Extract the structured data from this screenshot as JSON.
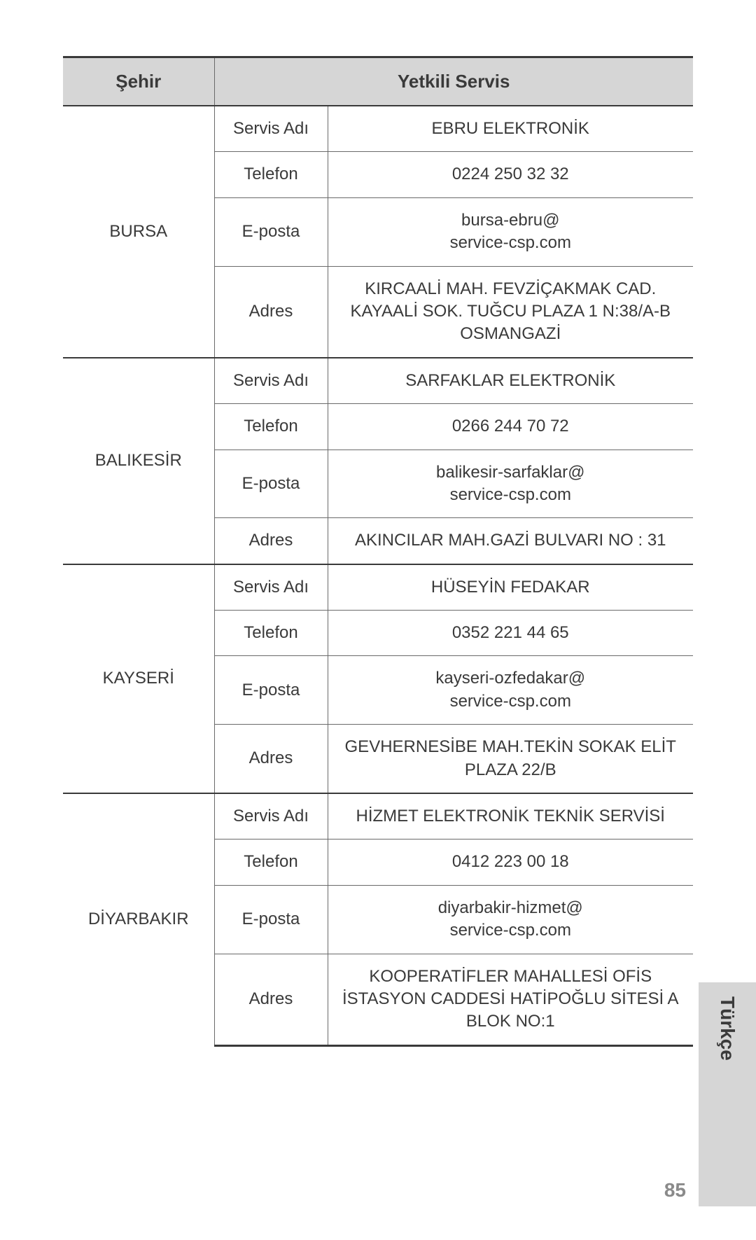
{
  "headers": {
    "city": "Şehir",
    "service": "Yetkili Servis"
  },
  "labels": {
    "name": "Servis Adı",
    "phone": "Telefon",
    "email": "E-posta",
    "address": "Adres"
  },
  "cities": [
    {
      "city": "BURSA",
      "name": "EBRU ELEKTRONİK",
      "phone": "0224 250 32 32",
      "email": "bursa-ebru@\nservice-csp.com",
      "address": "KIRCAALİ MAH. FEVZİÇAKMAK CAD. KAYAALİ SOK. TUĞCU PLAZA 1 N:38/A-B OSMANGAZİ"
    },
    {
      "city": "BALIKESİR",
      "name": "SARFAKLAR ELEKTRONİK",
      "phone": "0266 244 70 72",
      "email": "balikesir-sarfaklar@\nservice-csp.com",
      "address": "AKINCILAR MAH.GAZİ BULVARI NO : 31"
    },
    {
      "city": "KAYSERİ",
      "name": "HÜSEYİN FEDAKAR",
      "phone": "0352 221 44 65",
      "email": "kayseri-ozfedakar@\nservice-csp.com",
      "address": "GEVHERNESİBE MAH.TEKİN SOKAK ELİT PLAZA 22/B"
    },
    {
      "city": "DİYARBAKIR",
      "name": "HİZMET ELEKTRONİK TEKNİK SERVİSİ",
      "phone": "0412 223 00 18",
      "email": "diyarbakir-hizmet@\nservice-csp.com",
      "address": "KOOPERATİFLER MAHALLESİ OFİS İSTASYON CADDESİ HATİPOĞLU SİTESİ A BLOK NO:1"
    }
  ],
  "sideTab": "Türkçe",
  "pageNumber": "85"
}
